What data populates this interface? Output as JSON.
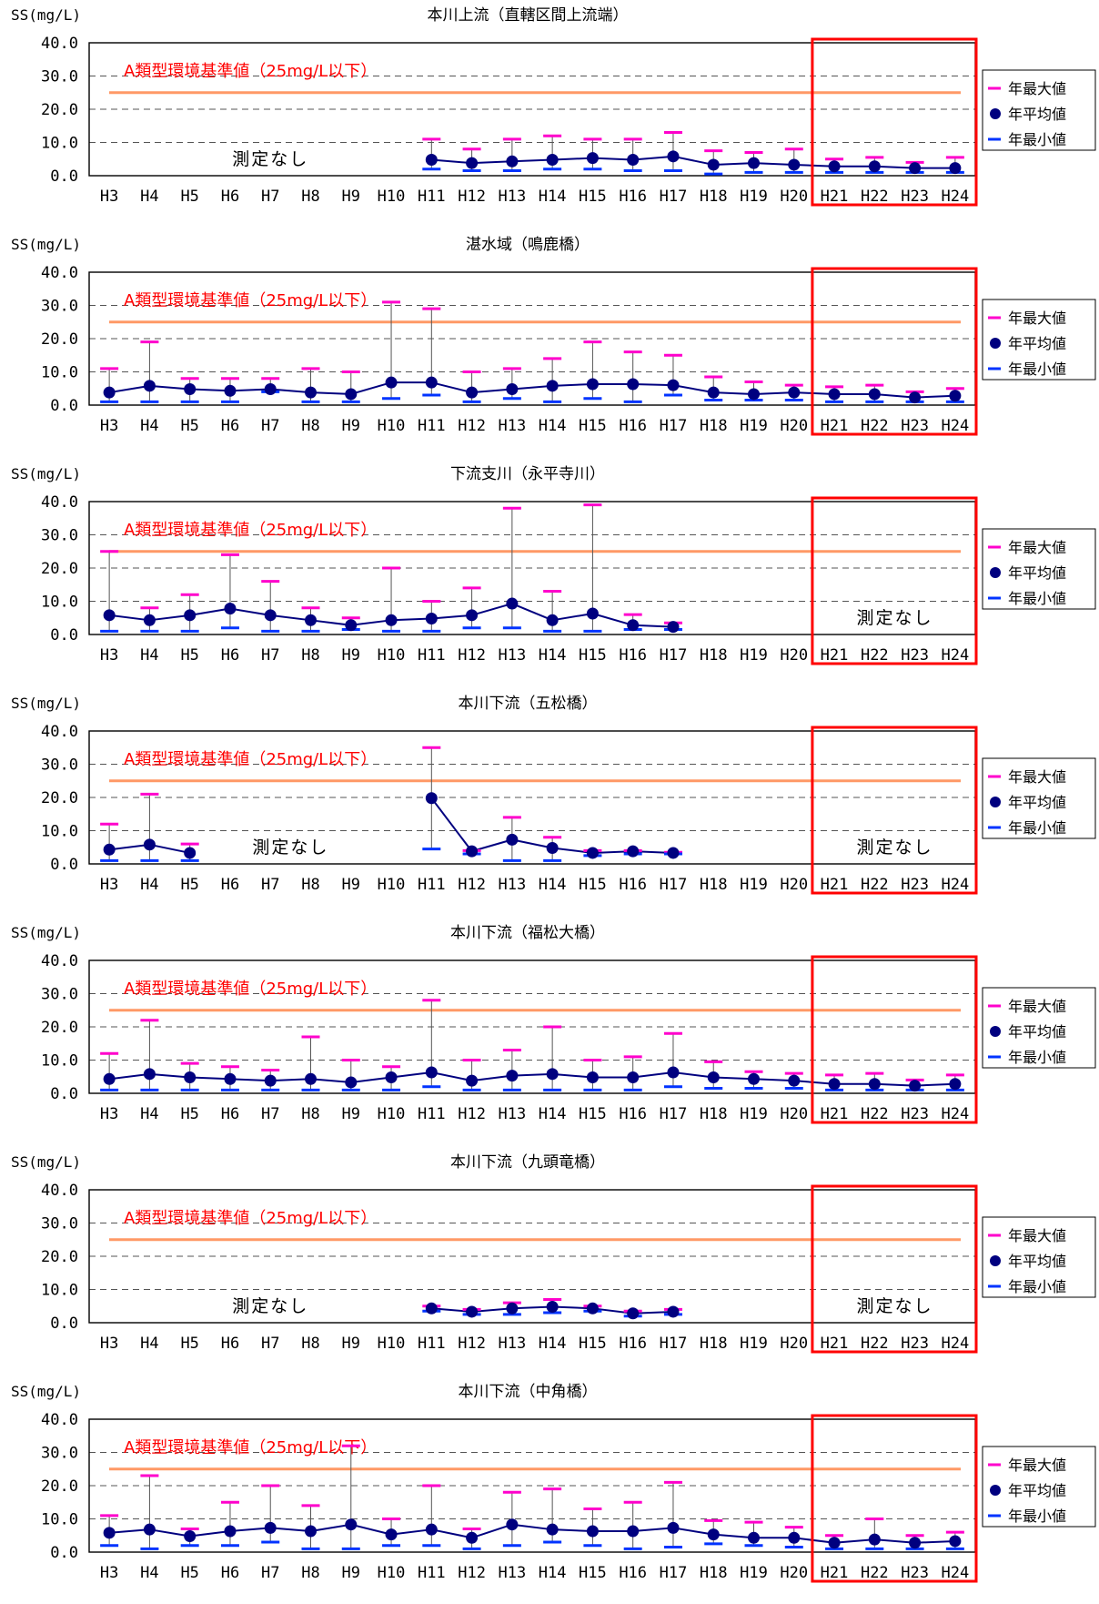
{
  "legend": {
    "max_label": "年最大値",
    "mean_label": "年平均値",
    "min_label": "年最小値"
  },
  "colors": {
    "max": "#ff00cc",
    "mean": "#00007f",
    "min": "#0033ff",
    "standard_line": "#ff9966",
    "highlight": "#ff0000"
  },
  "chart_data": [
    {
      "type": "line",
      "title": "本川上流（直轄区間上流端）",
      "ylabel": "SS(mg/L)",
      "ylim": [
        0,
        40
      ],
      "yticks": [
        "0.0",
        "10.0",
        "20.0",
        "30.0",
        "40.0"
      ],
      "categories": [
        "H3",
        "H4",
        "H5",
        "H6",
        "H7",
        "H8",
        "H9",
        "H10",
        "H11",
        "H12",
        "H13",
        "H14",
        "H15",
        "H16",
        "H17",
        "H18",
        "H19",
        "H20",
        "H21",
        "H22",
        "H23",
        "H24"
      ],
      "standard": {
        "value": 25,
        "label": "A類型環境基準値（25mg/L以下）"
      },
      "highlight_range": [
        "H21",
        "H24"
      ],
      "no_data_labels": [
        {
          "text": "測定なし",
          "at": "H7"
        }
      ],
      "series": [
        {
          "name": "年最大値",
          "values": [
            null,
            null,
            null,
            null,
            null,
            null,
            null,
            null,
            11,
            8,
            11,
            12,
            11,
            11,
            13,
            7.5,
            7,
            8,
            5,
            5.5,
            4,
            5.5
          ]
        },
        {
          "name": "年平均値",
          "values": [
            null,
            null,
            null,
            null,
            null,
            null,
            null,
            null,
            4.8,
            3.8,
            4.3,
            4.8,
            5.3,
            4.8,
            5.8,
            3.3,
            3.8,
            3.3,
            2.8,
            2.8,
            2.3,
            2.3
          ]
        },
        {
          "name": "年最小値",
          "values": [
            null,
            null,
            null,
            null,
            null,
            null,
            null,
            null,
            2,
            1.5,
            1.5,
            2,
            2,
            1.5,
            1.5,
            0.5,
            1,
            1,
            1,
            1,
            1,
            1
          ]
        }
      ]
    },
    {
      "type": "line",
      "title": "湛水域（鳴鹿橋）",
      "ylabel": "SS(mg/L)",
      "ylim": [
        0,
        40
      ],
      "yticks": [
        "0.0",
        "10.0",
        "20.0",
        "30.0",
        "40.0"
      ],
      "categories": [
        "H3",
        "H4",
        "H5",
        "H6",
        "H7",
        "H8",
        "H9",
        "H10",
        "H11",
        "H12",
        "H13",
        "H14",
        "H15",
        "H16",
        "H17",
        "H18",
        "H19",
        "H20",
        "H21",
        "H22",
        "H23",
        "H24"
      ],
      "standard": {
        "value": 25,
        "label": "A類型環境基準値（25mg/L以下）"
      },
      "highlight_range": [
        "H21",
        "H24"
      ],
      "no_data_labels": [],
      "series": [
        {
          "name": "年最大値",
          "values": [
            11,
            19,
            8,
            8,
            8,
            11,
            10,
            31,
            29,
            10,
            11,
            14,
            19,
            16,
            15,
            8.5,
            7,
            6,
            5.5,
            6,
            4,
            5
          ]
        },
        {
          "name": "年平均値",
          "values": [
            3.8,
            5.8,
            4.8,
            4.3,
            4.8,
            3.8,
            3.3,
            6.8,
            6.8,
            3.8,
            4.8,
            5.8,
            6.3,
            6.3,
            6,
            3.8,
            3.3,
            3.8,
            3.3,
            3.3,
            2.3,
            2.8
          ]
        },
        {
          "name": "年最小値",
          "values": [
            1,
            1,
            1,
            1,
            4,
            1,
            1,
            2,
            3,
            1,
            2,
            1,
            2,
            1,
            3,
            1.5,
            1.5,
            1.5,
            1,
            1,
            1,
            1
          ]
        }
      ]
    },
    {
      "type": "line",
      "title": "下流支川（永平寺川）",
      "ylabel": "SS(mg/L)",
      "ylim": [
        0,
        40
      ],
      "yticks": [
        "0.0",
        "10.0",
        "20.0",
        "30.0",
        "40.0"
      ],
      "categories": [
        "H3",
        "H4",
        "H5",
        "H6",
        "H7",
        "H8",
        "H9",
        "H10",
        "H11",
        "H12",
        "H13",
        "H14",
        "H15",
        "H16",
        "H17",
        "H18",
        "H19",
        "H20",
        "H21",
        "H22",
        "H23",
        "H24"
      ],
      "standard": {
        "value": 25,
        "label": "A類型環境基準値（25mg/L以下）"
      },
      "highlight_range": [
        "H21",
        "H24"
      ],
      "no_data_labels": [
        {
          "text": "測定なし",
          "at": "H22.5"
        }
      ],
      "series": [
        {
          "name": "年最大値",
          "values": [
            25,
            8,
            12,
            24,
            16,
            8,
            5,
            20,
            10,
            14,
            38,
            13,
            39,
            6,
            3.5,
            null,
            null,
            null,
            null,
            null,
            null,
            null
          ]
        },
        {
          "name": "年平均値",
          "values": [
            5.8,
            4.3,
            5.8,
            7.8,
            5.8,
            4.3,
            2.8,
            4.3,
            4.8,
            5.8,
            9.3,
            4.3,
            6.3,
            2.8,
            2.3,
            null,
            null,
            null,
            null,
            null,
            null,
            null
          ]
        },
        {
          "name": "年最小値",
          "values": [
            1,
            1,
            1,
            2,
            1,
            1,
            1.5,
            1,
            1,
            2,
            2,
            1,
            1,
            1.5,
            1.5,
            null,
            null,
            null,
            null,
            null,
            null,
            null
          ]
        }
      ]
    },
    {
      "type": "line",
      "title": "本川下流（五松橋）",
      "ylabel": "SS(mg/L)",
      "ylim": [
        0,
        40
      ],
      "yticks": [
        "0.0",
        "10.0",
        "20.0",
        "30.0",
        "40.0"
      ],
      "categories": [
        "H3",
        "H4",
        "H5",
        "H6",
        "H7",
        "H8",
        "H9",
        "H10",
        "H11",
        "H12",
        "H13",
        "H14",
        "H15",
        "H16",
        "H17",
        "H18",
        "H19",
        "H20",
        "H21",
        "H22",
        "H23",
        "H24"
      ],
      "standard": {
        "value": 25,
        "label": "A類型環境基準値（25mg/L以下）"
      },
      "highlight_range": [
        "H21",
        "H24"
      ],
      "no_data_labels": [
        {
          "text": "測定なし",
          "at": "H7.5"
        },
        {
          "text": "測定なし",
          "at": "H22.5"
        }
      ],
      "series": [
        {
          "name": "年最大値",
          "values": [
            12,
            21,
            6,
            null,
            null,
            null,
            null,
            null,
            35,
            4,
            14,
            8,
            4,
            4,
            3.5,
            null,
            null,
            null,
            null,
            null,
            null,
            null
          ]
        },
        {
          "name": "年平均値",
          "values": [
            4.3,
            5.8,
            3.3,
            null,
            null,
            null,
            null,
            null,
            19.8,
            3.8,
            7.3,
            4.8,
            3.3,
            3.8,
            3.3,
            null,
            null,
            null,
            null,
            null,
            null,
            null
          ]
        },
        {
          "name": "年最小値",
          "values": [
            1,
            1,
            1,
            null,
            null,
            null,
            null,
            null,
            4.5,
            3,
            1,
            1,
            2.5,
            3,
            3,
            null,
            null,
            null,
            null,
            null,
            null,
            null
          ]
        }
      ]
    },
    {
      "type": "line",
      "title": "本川下流（福松大橋）",
      "ylabel": "SS(mg/L)",
      "ylim": [
        0,
        40
      ],
      "yticks": [
        "0.0",
        "10.0",
        "20.0",
        "30.0",
        "40.0"
      ],
      "categories": [
        "H3",
        "H4",
        "H5",
        "H6",
        "H7",
        "H8",
        "H9",
        "H10",
        "H11",
        "H12",
        "H13",
        "H14",
        "H15",
        "H16",
        "H17",
        "H18",
        "H19",
        "H20",
        "H21",
        "H22",
        "H23",
        "H24"
      ],
      "standard": {
        "value": 25,
        "label": "A類型環境基準値（25mg/L以下）"
      },
      "highlight_range": [
        "H21",
        "H24"
      ],
      "no_data_labels": [],
      "series": [
        {
          "name": "年最大値",
          "values": [
            12,
            22,
            9,
            8,
            7,
            17,
            10,
            8,
            28,
            10,
            13,
            20,
            10,
            11,
            18,
            9.5,
            6.5,
            6,
            5.5,
            6,
            4,
            5.5
          ]
        },
        {
          "name": "年平均値",
          "values": [
            4.3,
            5.8,
            4.8,
            4.3,
            3.8,
            4.3,
            3.3,
            4.8,
            6.3,
            3.8,
            5.3,
            5.8,
            4.8,
            4.8,
            6.3,
            4.8,
            4.3,
            3.8,
            2.8,
            2.8,
            2.3,
            2.8
          ]
        },
        {
          "name": "年最小値",
          "values": [
            1,
            1,
            1,
            1,
            1,
            1,
            1,
            1,
            2,
            1,
            1,
            1,
            1,
            1,
            2,
            1.5,
            1.5,
            1.5,
            1,
            1,
            1,
            1
          ]
        }
      ]
    },
    {
      "type": "line",
      "title": "本川下流（九頭竜橋）",
      "ylabel": "SS(mg/L)",
      "ylim": [
        0,
        40
      ],
      "yticks": [
        "0.0",
        "10.0",
        "20.0",
        "30.0",
        "40.0"
      ],
      "categories": [
        "H3",
        "H4",
        "H5",
        "H6",
        "H7",
        "H8",
        "H9",
        "H10",
        "H11",
        "H12",
        "H13",
        "H14",
        "H15",
        "H16",
        "H17",
        "H18",
        "H19",
        "H20",
        "H21",
        "H22",
        "H23",
        "H24"
      ],
      "standard": {
        "value": 25,
        "label": "A類型環境基準値（25mg/L以下）"
      },
      "highlight_range": [
        "H21",
        "H24"
      ],
      "no_data_labels": [
        {
          "text": "測定なし",
          "at": "H7"
        },
        {
          "text": "測定なし",
          "at": "H22.5"
        }
      ],
      "series": [
        {
          "name": "年最大値",
          "values": [
            null,
            null,
            null,
            null,
            null,
            null,
            null,
            null,
            5,
            4,
            6,
            7,
            5,
            3.5,
            4,
            null,
            null,
            null,
            null,
            null,
            null,
            null
          ]
        },
        {
          "name": "年平均値",
          "values": [
            null,
            null,
            null,
            null,
            null,
            null,
            null,
            null,
            4.3,
            3.3,
            4.3,
            4.8,
            4.3,
            2.8,
            3.3,
            null,
            null,
            null,
            null,
            null,
            null,
            null
          ]
        },
        {
          "name": "年最小値",
          "values": [
            null,
            null,
            null,
            null,
            null,
            null,
            null,
            null,
            3.5,
            2.5,
            2.5,
            3,
            3.5,
            2,
            2.5,
            null,
            null,
            null,
            null,
            null,
            null,
            null
          ]
        }
      ]
    },
    {
      "type": "line",
      "title": "本川下流（中角橋）",
      "ylabel": "SS(mg/L)",
      "ylim": [
        0,
        40
      ],
      "yticks": [
        "0.0",
        "10.0",
        "20.0",
        "30.0",
        "40.0"
      ],
      "categories": [
        "H3",
        "H4",
        "H5",
        "H6",
        "H7",
        "H8",
        "H9",
        "H10",
        "H11",
        "H12",
        "H13",
        "H14",
        "H15",
        "H16",
        "H17",
        "H18",
        "H19",
        "H20",
        "H21",
        "H22",
        "H23",
        "H24"
      ],
      "standard": {
        "value": 25,
        "label": "A類型環境基準値（25mg/L以下）"
      },
      "highlight_range": [
        "H21",
        "H24"
      ],
      "no_data_labels": [],
      "series": [
        {
          "name": "年最大値",
          "values": [
            11,
            23,
            7,
            15,
            20,
            14,
            32,
            10,
            20,
            7,
            18,
            19,
            13,
            15,
            21,
            9.5,
            9,
            7.5,
            5,
            10,
            5,
            6
          ]
        },
        {
          "name": "年平均値",
          "values": [
            5.8,
            6.8,
            4.8,
            6.3,
            7.3,
            6.3,
            8.3,
            5.3,
            6.8,
            4.3,
            8.3,
            6.8,
            6.3,
            6.3,
            7.3,
            5.3,
            4.3,
            4.3,
            2.8,
            3.8,
            2.8,
            3.3
          ]
        },
        {
          "name": "年最小値",
          "values": [
            2,
            1,
            2,
            2,
            3,
            1,
            1,
            2,
            2,
            1,
            2,
            3,
            2,
            1,
            1.5,
            2.5,
            2,
            1.5,
            1,
            1,
            1,
            1
          ]
        }
      ]
    }
  ]
}
